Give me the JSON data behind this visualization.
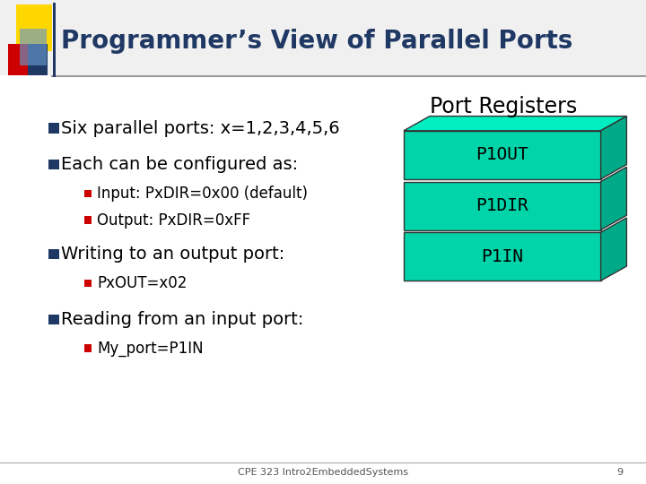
{
  "title": "Programmer’s View of Parallel Ports",
  "title_color": "#1F3864",
  "title_fontsize": 20,
  "bg_color": "#FFFFFF",
  "bullet1": "Six parallel ports: x=1,2,3,4,5,6",
  "bullet2": "Each can be configured as:",
  "sub_bullet1": "Input: PxDIR=0x00 (default)",
  "sub_bullet2": "Output: PxDIR=0xFF",
  "bullet3": "Writing to an output port:",
  "sub_bullet3": "PxOUT=x02",
  "bullet4": "Reading from an input port:",
  "sub_bullet4": "My_port=P1IN",
  "port_registers_label": "Port Registers",
  "port_labels": [
    "P1OUT",
    "P1DIR",
    "P1IN"
  ],
  "port_face_color": "#00D4A8",
  "port_top_color": "#00EEC0",
  "port_side_color": "#00AA88",
  "bullet_color_main": "#1F3864",
  "bullet_color_sub": "#CC0000",
  "footer_text": "CPE 323 Intro2EmbeddedSystems",
  "footer_page": "9",
  "text_color": "#000000",
  "main_font_size": 14,
  "sub_font_size": 12,
  "port_label_fontsize": 14,
  "port_registers_fontsize": 17
}
